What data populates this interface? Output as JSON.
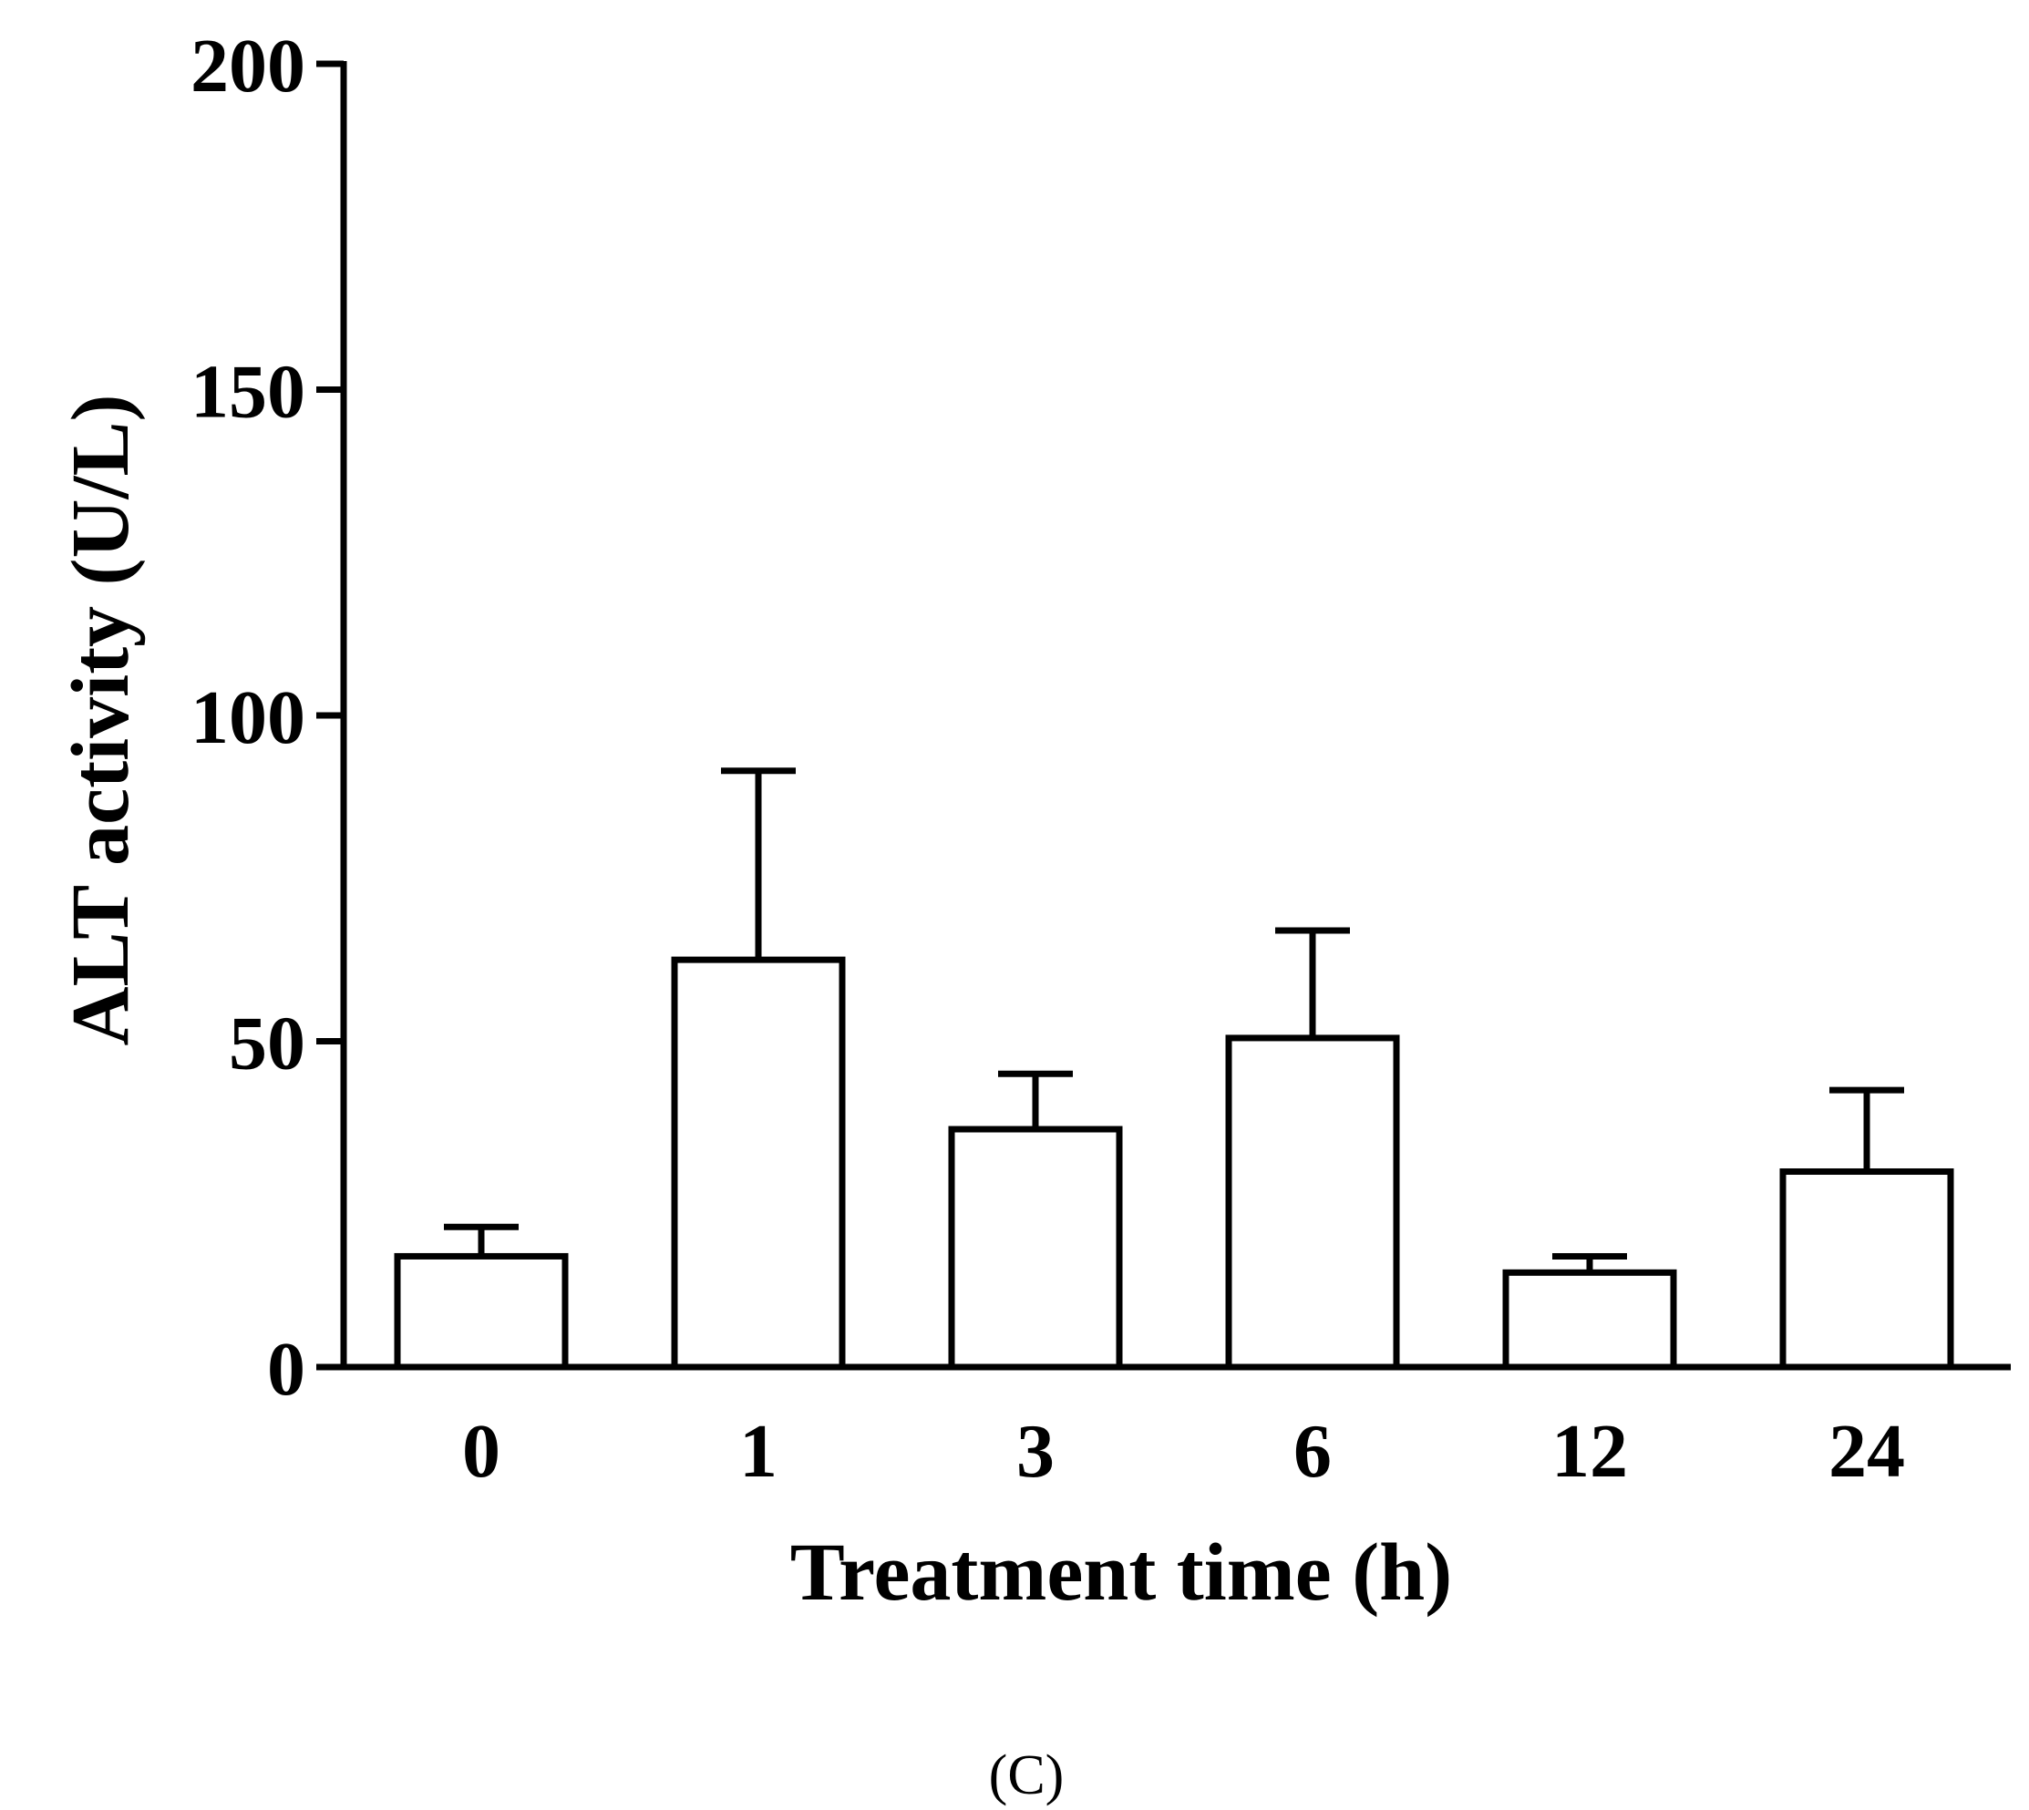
{
  "chart_data": {
    "type": "bar",
    "title": "",
    "xlabel": "Treatment time (h)",
    "ylabel": "ALT activity (U/L)",
    "categories": [
      "0",
      "1",
      "3",
      "6",
      "12",
      "24"
    ],
    "values": [
      17,
      62.5,
      36.5,
      50.5,
      14.5,
      30
    ],
    "error": [
      4.5,
      29,
      8.5,
      16.5,
      2.5,
      12.5
    ],
    "ylim": [
      0,
      200
    ],
    "yticks": [
      "0",
      "50",
      "100",
      "150",
      "200"
    ],
    "grid": false,
    "bar_fill": "#ffffff",
    "bar_stroke": "#000000",
    "panel_label": "(C)"
  }
}
